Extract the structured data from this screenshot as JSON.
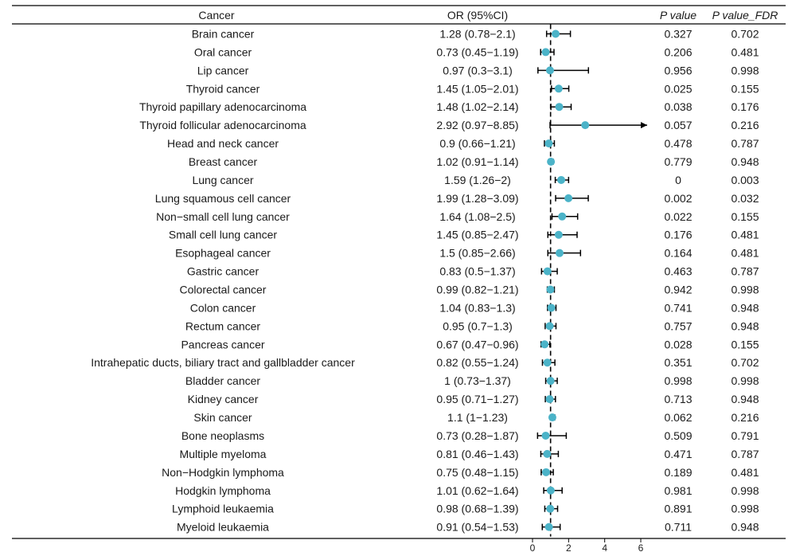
{
  "chart_data": {
    "type": "forest",
    "columns": {
      "cancer": "Cancer",
      "or": "OR (95%CI)",
      "p": "P value",
      "p_fdr": "P value_FDR"
    },
    "reference_line": 1,
    "xlim": [
      0,
      6
    ],
    "xticks": [
      0,
      2,
      4,
      6
    ],
    "point_color": "#4bb3c8",
    "rows": [
      {
        "cancer": "Brain cancer",
        "or": 1.28,
        "lo": 0.78,
        "hi": 2.1,
        "or_text": "1.28 (0.78−2.1)",
        "p": "0.327",
        "p_fdr": "0.702"
      },
      {
        "cancer": "Oral cancer",
        "or": 0.73,
        "lo": 0.45,
        "hi": 1.19,
        "or_text": "0.73 (0.45−1.19)",
        "p": "0.206",
        "p_fdr": "0.481"
      },
      {
        "cancer": "Lip cancer",
        "or": 0.97,
        "lo": 0.3,
        "hi": 3.1,
        "or_text": "0.97 (0.3−3.1)",
        "p": "0.956",
        "p_fdr": "0.998"
      },
      {
        "cancer": "Thyroid cancer",
        "or": 1.45,
        "lo": 1.05,
        "hi": 2.01,
        "or_text": "1.45 (1.05−2.01)",
        "p": "0.025",
        "p_fdr": "0.155"
      },
      {
        "cancer": "Thyroid papillary adenocarcinoma",
        "or": 1.48,
        "lo": 1.02,
        "hi": 2.14,
        "or_text": "1.48 (1.02−2.14)",
        "p": "0.038",
        "p_fdr": "0.176"
      },
      {
        "cancer": "Thyroid follicular adenocarcinoma",
        "or": 2.92,
        "lo": 0.97,
        "hi": 8.85,
        "or_text": "2.92 (0.97−8.85)",
        "p": "0.057",
        "p_fdr": "0.216"
      },
      {
        "cancer": "Head and neck cancer",
        "or": 0.9,
        "lo": 0.66,
        "hi": 1.21,
        "or_text": "0.9 (0.66−1.21)",
        "p": "0.478",
        "p_fdr": "0.787"
      },
      {
        "cancer": "Breast cancer",
        "or": 1.02,
        "lo": 0.91,
        "hi": 1.14,
        "or_text": "1.02 (0.91−1.14)",
        "p": "0.779",
        "p_fdr": "0.948"
      },
      {
        "cancer": "Lung cancer",
        "or": 1.59,
        "lo": 1.26,
        "hi": 2,
        "or_text": "1.59 (1.26−2)",
        "p": "0",
        "p_fdr": "0.003"
      },
      {
        "cancer": "Lung squamous cell cancer",
        "or": 1.99,
        "lo": 1.28,
        "hi": 3.09,
        "or_text": "1.99 (1.28−3.09)",
        "p": "0.002",
        "p_fdr": "0.032"
      },
      {
        "cancer": "Non−small cell lung cancer",
        "or": 1.64,
        "lo": 1.08,
        "hi": 2.5,
        "or_text": "1.64 (1.08−2.5)",
        "p": "0.022",
        "p_fdr": "0.155"
      },
      {
        "cancer": "Small cell lung cancer",
        "or": 1.45,
        "lo": 0.85,
        "hi": 2.47,
        "or_text": "1.45 (0.85−2.47)",
        "p": "0.176",
        "p_fdr": "0.481"
      },
      {
        "cancer": "Esophageal cancer",
        "or": 1.5,
        "lo": 0.85,
        "hi": 2.66,
        "or_text": "1.5 (0.85−2.66)",
        "p": "0.164",
        "p_fdr": "0.481"
      },
      {
        "cancer": "Gastric cancer",
        "or": 0.83,
        "lo": 0.5,
        "hi": 1.37,
        "or_text": "0.83 (0.5−1.37)",
        "p": "0.463",
        "p_fdr": "0.787"
      },
      {
        "cancer": "Colorectal cancer",
        "or": 0.99,
        "lo": 0.82,
        "hi": 1.21,
        "or_text": "0.99 (0.82−1.21)",
        "p": "0.942",
        "p_fdr": "0.998"
      },
      {
        "cancer": "Colon cancer",
        "or": 1.04,
        "lo": 0.83,
        "hi": 1.3,
        "or_text": "1.04 (0.83−1.3)",
        "p": "0.741",
        "p_fdr": "0.948"
      },
      {
        "cancer": "Rectum cancer",
        "or": 0.95,
        "lo": 0.7,
        "hi": 1.3,
        "or_text": "0.95 (0.7−1.3)",
        "p": "0.757",
        "p_fdr": "0.948"
      },
      {
        "cancer": "Pancreas cancer",
        "or": 0.67,
        "lo": 0.47,
        "hi": 0.96,
        "or_text": "0.67 (0.47−0.96)",
        "p": "0.028",
        "p_fdr": "0.155"
      },
      {
        "cancer": "Intrahepatic ducts, biliary tract and gallbladder cancer",
        "or": 0.82,
        "lo": 0.55,
        "hi": 1.24,
        "or_text": "0.82 (0.55−1.24)",
        "p": "0.351",
        "p_fdr": "0.702"
      },
      {
        "cancer": "Bladder cancer",
        "or": 1,
        "lo": 0.73,
        "hi": 1.37,
        "or_text": "1 (0.73−1.37)",
        "p": "0.998",
        "p_fdr": "0.998"
      },
      {
        "cancer": "Kidney cancer",
        "or": 0.95,
        "lo": 0.71,
        "hi": 1.27,
        "or_text": "0.95 (0.71−1.27)",
        "p": "0.713",
        "p_fdr": "0.948"
      },
      {
        "cancer": "Skin cancer",
        "or": 1.1,
        "lo": 1,
        "hi": 1.23,
        "or_text": "1.1 (1−1.23)",
        "p": "0.062",
        "p_fdr": "0.216"
      },
      {
        "cancer": "Bone neoplasms",
        "or": 0.73,
        "lo": 0.28,
        "hi": 1.87,
        "or_text": "0.73 (0.28−1.87)",
        "p": "0.509",
        "p_fdr": "0.791"
      },
      {
        "cancer": "Multiple myeloma",
        "or": 0.81,
        "lo": 0.46,
        "hi": 1.43,
        "or_text": "0.81 (0.46−1.43)",
        "p": "0.471",
        "p_fdr": "0.787"
      },
      {
        "cancer": "Non−Hodgkin lymphoma",
        "or": 0.75,
        "lo": 0.48,
        "hi": 1.15,
        "or_text": "0.75 (0.48−1.15)",
        "p": "0.189",
        "p_fdr": "0.481"
      },
      {
        "cancer": "Hodgkin lymphoma",
        "or": 1.01,
        "lo": 0.62,
        "hi": 1.64,
        "or_text": "1.01 (0.62−1.64)",
        "p": "0.981",
        "p_fdr": "0.998"
      },
      {
        "cancer": "Lymphoid leukaemia",
        "or": 0.98,
        "lo": 0.68,
        "hi": 1.39,
        "or_text": "0.98 (0.68−1.39)",
        "p": "0.891",
        "p_fdr": "0.998"
      },
      {
        "cancer": "Myeloid leukaemia",
        "or": 0.91,
        "lo": 0.54,
        "hi": 1.53,
        "or_text": "0.91 (0.54−1.53)",
        "p": "0.711",
        "p_fdr": "0.948"
      }
    ]
  }
}
